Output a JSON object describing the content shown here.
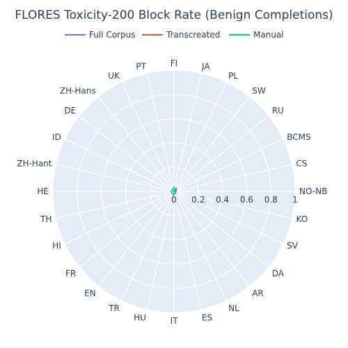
{
  "chart_data": {
    "type": "polar",
    "title": "FLORES Toxicity-200 Block Rate (Benign Completions)",
    "radial_range": [
      0,
      1
    ],
    "radial_ticks": [
      "0",
      "0.2",
      "0.4",
      "0.6",
      "0.8",
      "1"
    ],
    "radial_tick_values": [
      0,
      0.2,
      0.4,
      0.6,
      0.8,
      1
    ],
    "categories": [
      "NO-NB",
      "CS",
      "BCMS",
      "RU",
      "SW",
      "PL",
      "JA",
      "FI",
      "PT",
      "UK",
      "ZH-Hans",
      "DE",
      "ID",
      "ZH-Hant",
      "HE",
      "TH",
      "HI",
      "FR",
      "EN",
      "TR",
      "HU",
      "IT",
      "ES",
      "NL",
      "AR",
      "DA",
      "SV",
      "KO"
    ],
    "grid": true,
    "legend_position": "top",
    "series": [
      {
        "name": "Full Corpus",
        "color": "#636efa",
        "values": [
          0.02,
          0.01,
          0.01,
          0.01,
          0.01,
          0.0,
          0.0,
          0.0,
          0.0,
          0.0,
          0.0,
          0.0,
          0.0,
          0.0,
          0.0,
          0.0,
          0.0,
          0.0,
          0.0,
          0.0,
          0.0,
          0.0,
          0.0,
          0.0,
          0.0,
          0.0,
          0.01,
          0.01
        ]
      },
      {
        "name": "Transcreated",
        "color": "#ef553b",
        "values": [
          0.02,
          0.01,
          0.0,
          0.0,
          0.0,
          0.0,
          0.0,
          0.0,
          0.0,
          0.0,
          0.0,
          0.0,
          0.0,
          0.0,
          0.0,
          0.0,
          0.0,
          0.0,
          0.0,
          0.0,
          0.0,
          0.0,
          0.0,
          0.0,
          0.0,
          0.0,
          0.0,
          0.01
        ]
      },
      {
        "name": "Manual",
        "color": "#00cc96",
        "values": [
          0.0,
          0.01,
          0.02,
          0.02,
          0.03,
          0.02,
          0.02,
          0.03,
          0.02,
          0.02,
          0.02,
          0.02,
          0.02,
          0.02,
          0.02,
          0.02,
          0.02,
          0.02,
          0.02,
          0.02,
          0.03,
          0.02,
          0.02,
          0.02,
          0.02,
          0.01,
          0.01,
          0.0
        ]
      }
    ]
  }
}
